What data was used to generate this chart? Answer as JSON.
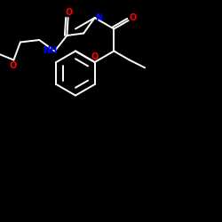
{
  "background_color": "#000000",
  "bond_color": "#ffffff",
  "atom_colors": {
    "O": "#ff0000",
    "N": "#0000ff",
    "C": "#ffffff",
    "H": "#ffffff"
  },
  "figsize": [
    2.5,
    2.5
  ],
  "dpi": 100,
  "lw": 1.4,
  "fontsize": 7.0
}
